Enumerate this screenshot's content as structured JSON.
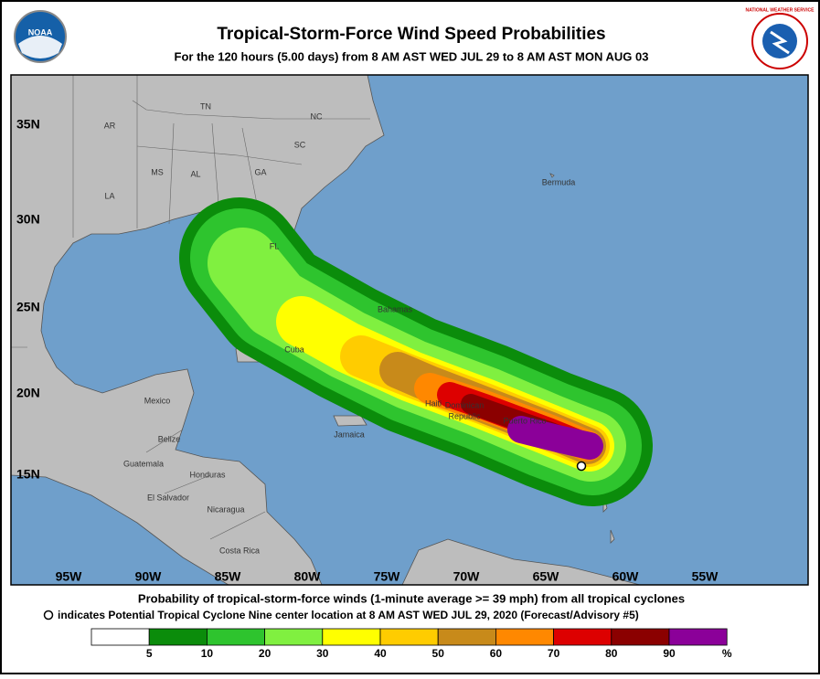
{
  "header": {
    "title": "Tropical-Storm-Force Wind Speed Probabilities",
    "subtitle": "For the 120 hours (5.00 days) from 8 AM AST WED JUL 29 to 8 AM AST MON AUG 03",
    "left_logo": "NOAA",
    "right_logo": "NATIONAL WEATHER SERVICE"
  },
  "map": {
    "lon_labels": [
      "95W",
      "90W",
      "85W",
      "80W",
      "75W",
      "70W",
      "65W",
      "60W",
      "55W"
    ],
    "lat_labels": [
      "35N",
      "30N",
      "25N",
      "20N",
      "15N"
    ],
    "places": [
      "AR",
      "TN",
      "NC",
      "SC",
      "MS",
      "AL",
      "GA",
      "LA",
      "FL",
      "Bermuda",
      "Bahamas",
      "Cuba",
      "Mexico",
      "Haiti",
      "Dominican",
      "Republic",
      "Puerto Rico",
      "Jamaica",
      "Belize",
      "Guatemala",
      "Honduras",
      "El Salvador",
      "Nicaragua",
      "Costa Rica"
    ]
  },
  "footer": {
    "line1": "Probability of tropical-storm-force winds (1-minute average >= 39 mph) from all tropical cyclones",
    "line2": "indicates Potential Tropical Cyclone Nine center location at 8 AM AST WED JUL 29, 2020 (Forecast/Advisory #5)"
  },
  "legend": {
    "labels": [
      "5",
      "10",
      "20",
      "30",
      "40",
      "50",
      "60",
      "70",
      "80",
      "90",
      "%"
    ],
    "colors": [
      "#ffffff",
      "#0b8c0b",
      "#2ec42e",
      "#80f040",
      "#ffff00",
      "#ffcc00",
      "#c88a1a",
      "#ff8800",
      "#dd0000",
      "#8b0000",
      "#8b0099"
    ]
  }
}
